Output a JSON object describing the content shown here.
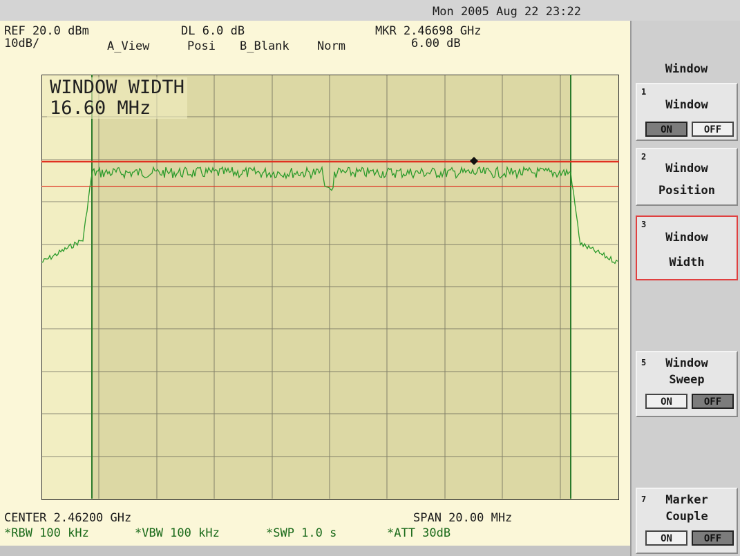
{
  "header": {
    "datetime": "Mon 2005 Aug 22 23:22",
    "ref": "REF 20.0 dBm",
    "scale": "10dB/",
    "dl": "DL 6.0 dB",
    "a_view": "A_View",
    "posi": "Posi",
    "b_blank": "B_Blank",
    "norm": "Norm",
    "marker_freq": "MKR 2.46698 GHz",
    "marker_level": "6.00 dB"
  },
  "overlay": {
    "line1": "WINDOW WIDTH",
    "line2": "16.60 MHz"
  },
  "footer": {
    "center": "CENTER 2.46200 GHz",
    "span": "SPAN 20.00 MHz",
    "rbw": "*RBW 100 kHz",
    "vbw": "*VBW 100 kHz",
    "swp": "*SWP 1.0 s",
    "att": "*ATT 30dB"
  },
  "softkeys": {
    "title": "Window",
    "k1": {
      "num": "1",
      "label": "Window",
      "on": "ON",
      "off": "OFF",
      "state": "ON"
    },
    "k2": {
      "num": "2",
      "label1": "Window",
      "label2": "Position"
    },
    "k3": {
      "num": "3",
      "label1": "Window",
      "label2": "Width",
      "active": true
    },
    "k5": {
      "num": "5",
      "label1": "Window",
      "label2": "Sweep",
      "on": "ON",
      "off": "OFF",
      "state": "OFF"
    },
    "k7": {
      "num": "7",
      "label1": "Marker",
      "label2": "Couple",
      "on": "ON",
      "off": "OFF",
      "state": "OFF"
    }
  },
  "colors": {
    "trace": "#2a9a2a",
    "display_line": "#e03020",
    "window_bar": "#2a7a2a"
  }
}
